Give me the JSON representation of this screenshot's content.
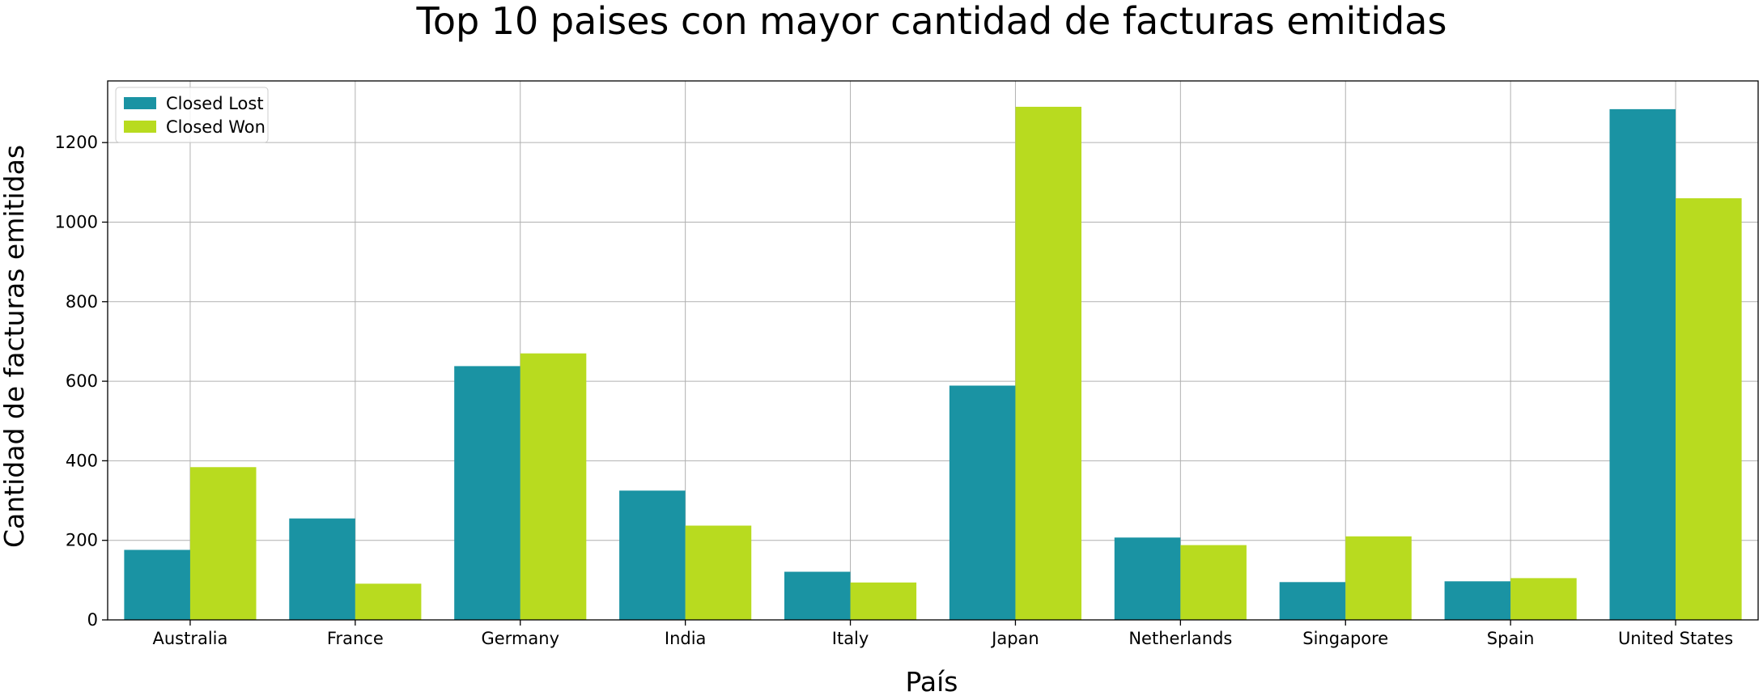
{
  "chart_data": {
    "type": "bar",
    "title": "Top 10 paises con mayor cantidad de facturas emitidas",
    "xlabel": "País",
    "ylabel": "Cantidad de facturas emitidas",
    "categories": [
      "Australia",
      "France",
      "Germany",
      "India",
      "Italy",
      "Japan",
      "Netherlands",
      "Singapore",
      "Spain",
      "United States"
    ],
    "series": [
      {
        "name": "Closed Lost",
        "color": "#1a93a3",
        "values": [
          176,
          255,
          638,
          325,
          121,
          589,
          207,
          95,
          97,
          1284
        ]
      },
      {
        "name": "Closed Won",
        "color": "#b8db1f",
        "values": [
          384,
          91,
          670,
          237,
          94,
          1290,
          188,
          210,
          105,
          1060
        ]
      }
    ],
    "ylim": [
      0,
      1355
    ],
    "yticks": [
      0,
      200,
      400,
      600,
      800,
      1000,
      1200
    ],
    "grid": true,
    "legend_position": "top-left"
  }
}
